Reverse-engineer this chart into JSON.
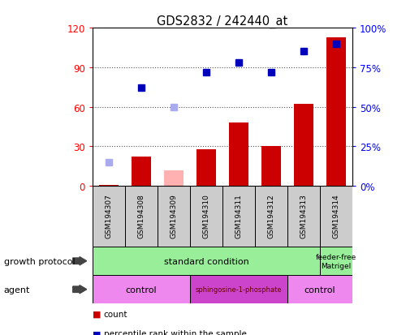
{
  "title": "GDS2832 / 242440_at",
  "samples": [
    "GSM194307",
    "GSM194308",
    "GSM194309",
    "GSM194310",
    "GSM194311",
    "GSM194312",
    "GSM194313",
    "GSM194314"
  ],
  "count_values": [
    1,
    22,
    null,
    28,
    48,
    30,
    62,
    113
  ],
  "count_absent": [
    null,
    null,
    12,
    null,
    null,
    null,
    null,
    null
  ],
  "rank_values": [
    null,
    62,
    null,
    72,
    78,
    72,
    85,
    90
  ],
  "rank_absent": [
    15,
    null,
    50,
    null,
    null,
    null,
    null,
    null
  ],
  "ylim_left": [
    0,
    120
  ],
  "yticks_left": [
    0,
    30,
    60,
    90,
    120
  ],
  "yticks_right": [
    0,
    25,
    50,
    75,
    100
  ],
  "ytick_labels_right": [
    "0%",
    "25%",
    "50%",
    "75%",
    "100%"
  ],
  "bar_color": "#cc0000",
  "bar_absent_color": "#ffb0b0",
  "rank_color": "#0000bb",
  "rank_absent_color": "#aaaaee",
  "growth_green": "#99ee99",
  "agent_light_pink": "#ee88ee",
  "agent_dark_pink": "#cc44cc",
  "sample_box_color": "#cccccc",
  "sphingo_text_color": "#660000"
}
